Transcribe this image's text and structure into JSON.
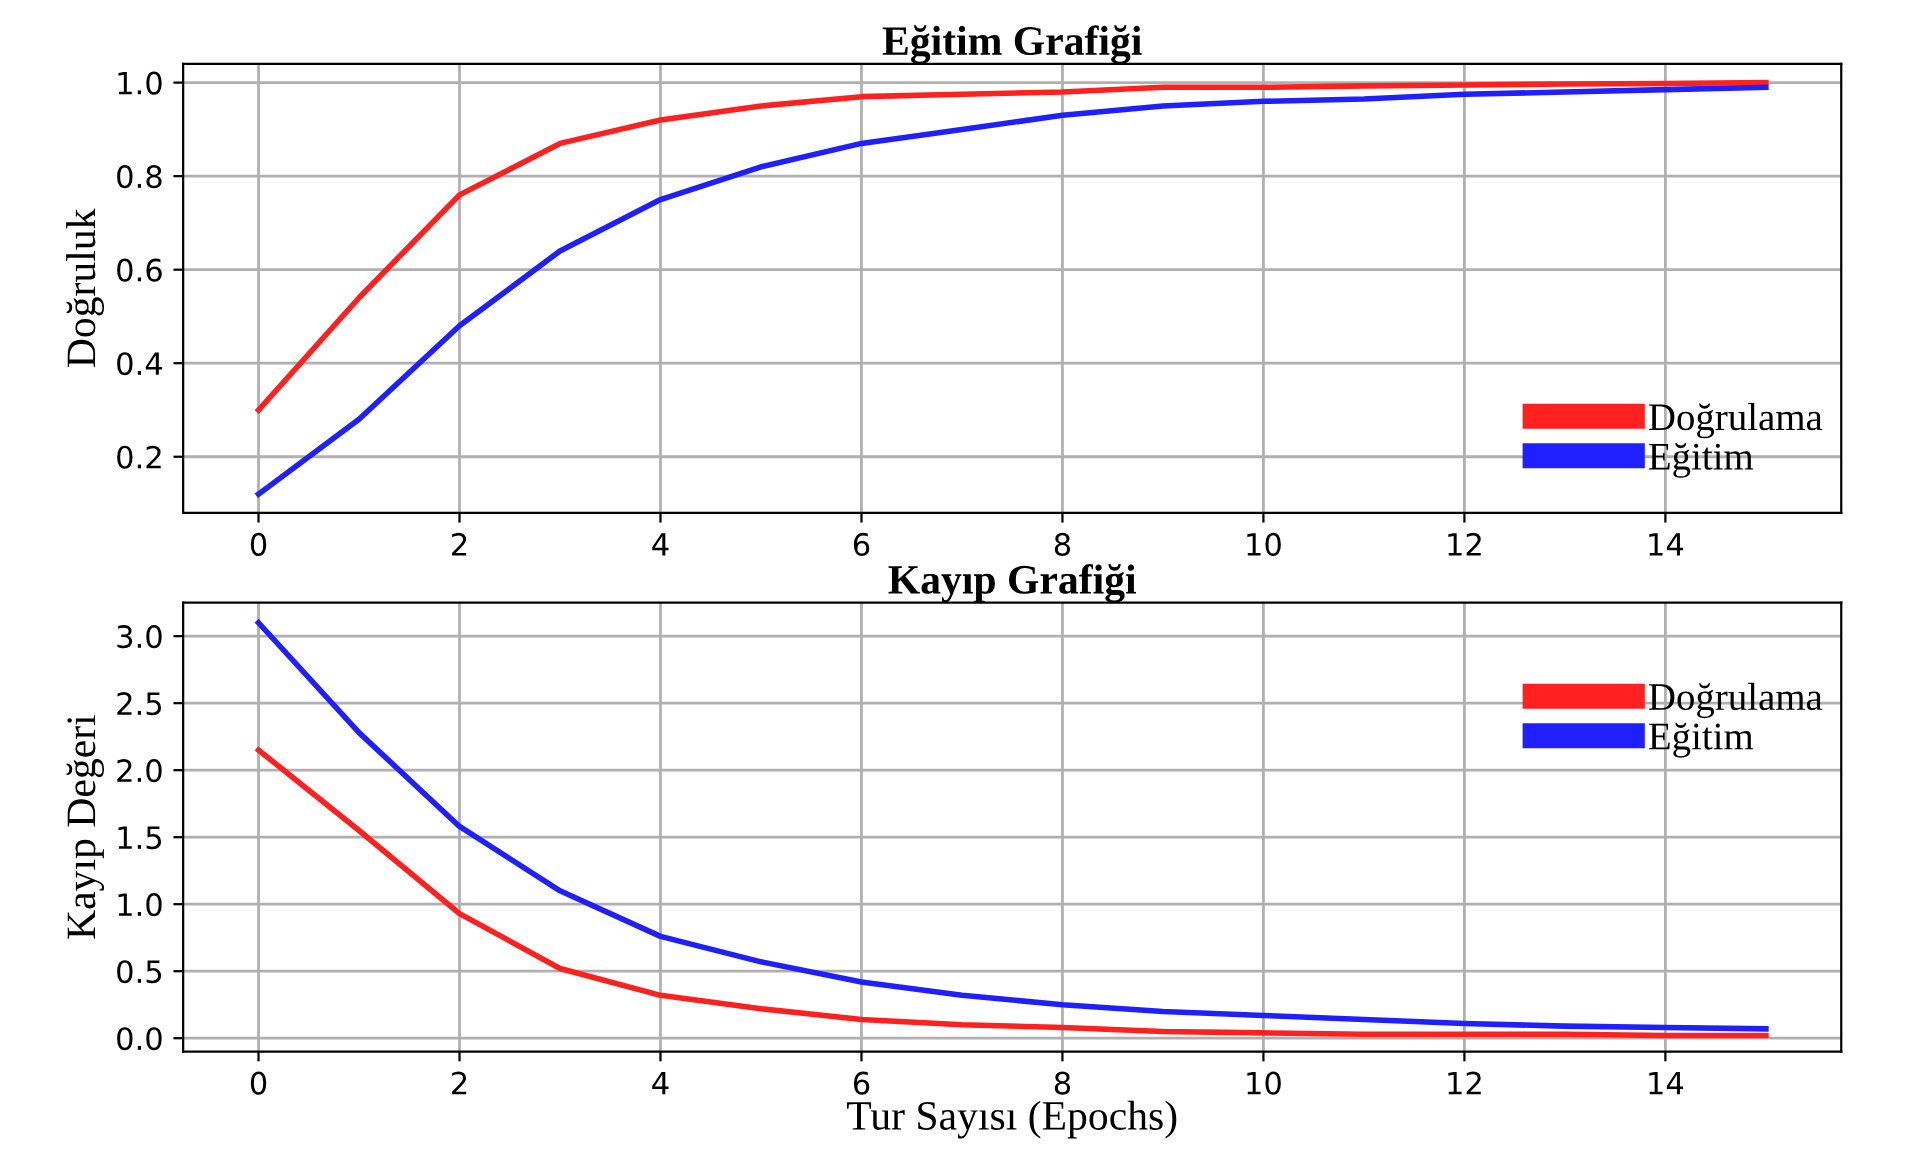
{
  "chart_data": [
    {
      "type": "line",
      "title": "Eğitim Grafiği",
      "ylabel": "Doğruluk",
      "x": [
        0,
        1,
        2,
        3,
        4,
        5,
        6,
        7,
        8,
        9,
        10,
        11,
        12,
        13,
        14,
        15
      ],
      "series": [
        {
          "name": "Doğrulama",
          "color": "#ff2020",
          "values": [
            0.3,
            0.54,
            0.76,
            0.87,
            0.92,
            0.95,
            0.97,
            0.975,
            0.98,
            0.99,
            0.99,
            0.993,
            0.995,
            0.997,
            0.998,
            1.0
          ]
        },
        {
          "name": "Eğitim",
          "color": "#2020ff",
          "values": [
            0.12,
            0.28,
            0.48,
            0.64,
            0.75,
            0.82,
            0.87,
            0.9,
            0.93,
            0.95,
            0.96,
            0.965,
            0.975,
            0.98,
            0.985,
            0.99
          ]
        }
      ],
      "xlim": [
        -0.75,
        15.75
      ],
      "ylim": [
        0.08,
        1.04
      ],
      "xticks": [
        0,
        2,
        4,
        6,
        8,
        10,
        12,
        14
      ],
      "yticks": [
        0.2,
        0.4,
        0.6,
        0.8,
        {
          "value": 1,
          "label": "1.0"
        }
      ],
      "grid": true,
      "legend": "lower right"
    },
    {
      "type": "line",
      "title": "Kayıp Grafiği",
      "ylabel": "Kayıp Değeri",
      "xlabel": "Tur Sayısı (Epochs)",
      "x": [
        0,
        1,
        2,
        3,
        4,
        5,
        6,
        7,
        8,
        9,
        10,
        11,
        12,
        13,
        14,
        15
      ],
      "series": [
        {
          "name": "Doğrulama",
          "color": "#ff2020",
          "values": [
            2.15,
            1.55,
            0.93,
            0.52,
            0.32,
            0.22,
            0.14,
            0.1,
            0.08,
            0.05,
            0.04,
            0.03,
            0.03,
            0.03,
            0.02,
            0.02
          ]
        },
        {
          "name": "Eğitim",
          "color": "#2020ff",
          "values": [
            3.1,
            2.28,
            1.58,
            1.1,
            0.76,
            0.57,
            0.42,
            0.32,
            0.25,
            0.2,
            0.17,
            0.14,
            0.11,
            0.09,
            0.08,
            0.07
          ]
        }
      ],
      "xlim": [
        -0.75,
        15.75
      ],
      "ylim": [
        -0.1,
        3.25
      ],
      "xticks": [
        0,
        2,
        4,
        6,
        8,
        10,
        12,
        14
      ],
      "yticks": [
        {
          "value": 0,
          "label": "0.0"
        },
        0.5,
        {
          "value": 1,
          "label": "1.0"
        },
        1.5,
        {
          "value": 2,
          "label": "2.0"
        },
        2.5,
        {
          "value": 3,
          "label": "3.0"
        }
      ],
      "grid": true,
      "legend": "upper right"
    }
  ]
}
